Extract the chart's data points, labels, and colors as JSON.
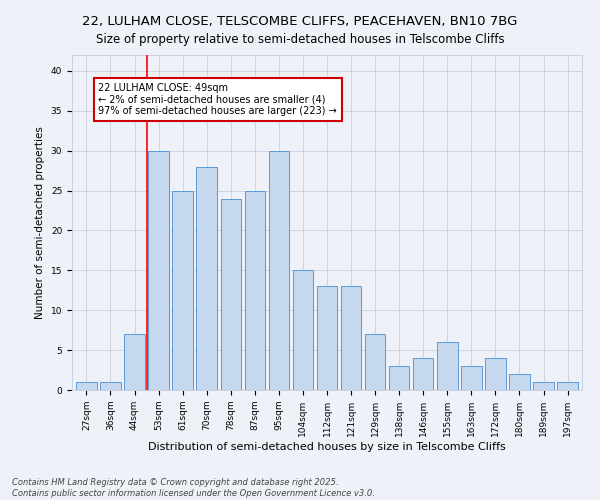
{
  "title": "22, LULHAM CLOSE, TELSCOMBE CLIFFS, PEACEHAVEN, BN10 7BG",
  "subtitle": "Size of property relative to semi-detached houses in Telscombe Cliffs",
  "xlabel": "Distribution of semi-detached houses by size in Telscombe Cliffs",
  "ylabel": "Number of semi-detached properties",
  "categories": [
    "27sqm",
    "36sqm",
    "44sqm",
    "53sqm",
    "61sqm",
    "70sqm",
    "78sqm",
    "87sqm",
    "95sqm",
    "104sqm",
    "112sqm",
    "121sqm",
    "129sqm",
    "138sqm",
    "146sqm",
    "155sqm",
    "163sqm",
    "172sqm",
    "180sqm",
    "189sqm",
    "197sqm"
  ],
  "values": [
    1,
    1,
    7,
    30,
    25,
    28,
    24,
    25,
    30,
    15,
    13,
    13,
    7,
    3,
    4,
    6,
    3,
    4,
    2,
    1,
    1
  ],
  "bar_color": "#c5d8ed",
  "bar_edge_color": "#5b9bd5",
  "red_line_x": 2.5,
  "annotation_text": "22 LULHAM CLOSE: 49sqm\n← 2% of semi-detached houses are smaller (4)\n97% of semi-detached houses are larger (223) →",
  "annotation_box_facecolor": "#ffffff",
  "annotation_box_edgecolor": "#cc0000",
  "ylim": [
    0,
    42
  ],
  "yticks": [
    0,
    5,
    10,
    15,
    20,
    25,
    30,
    35,
    40
  ],
  "footer": "Contains HM Land Registry data © Crown copyright and database right 2025.\nContains public sector information licensed under the Open Government Licence v3.0.",
  "bg_color": "#eef2f8",
  "plot_bg_color": "#eef2f8",
  "title_fontsize": 9.5,
  "subtitle_fontsize": 8.5,
  "xlabel_fontsize": 8,
  "ylabel_fontsize": 7.5,
  "tick_fontsize": 6.5,
  "annotation_fontsize": 7,
  "footer_fontsize": 6
}
